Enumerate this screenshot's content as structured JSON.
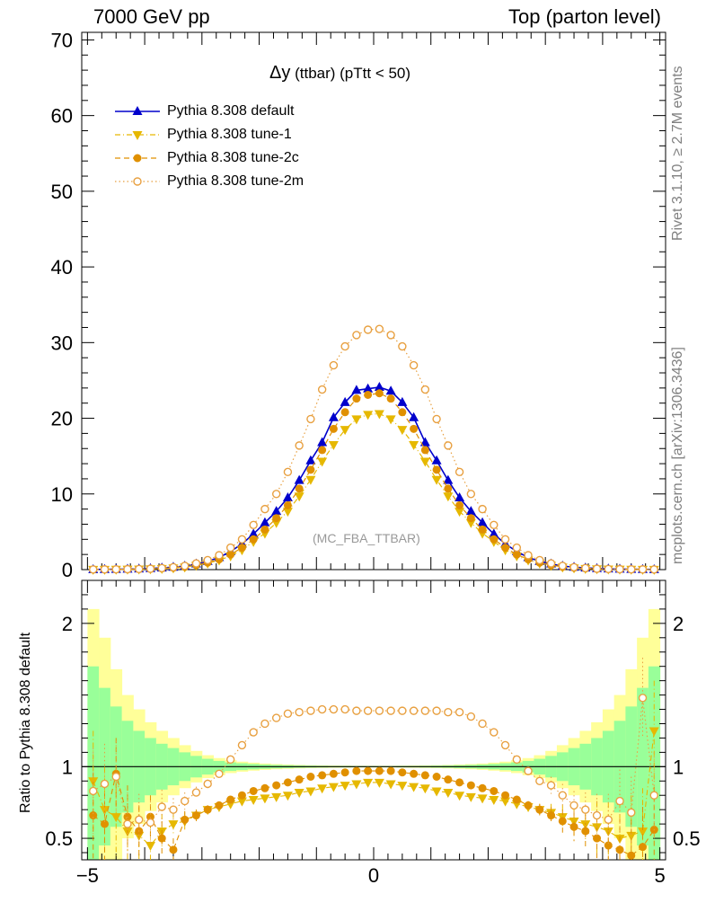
{
  "header": {
    "left": "7000 GeV pp",
    "right": "Top (parton level)"
  },
  "side_labels": {
    "rivet": "Rivet 3.1.10, ≥ 2.7M events",
    "mcplots": "mcplots.cern.ch [arXiv:1306.3436]"
  },
  "plot_title": {
    "main": "Δy",
    "detail": " (ttbar) (pTtt < 50)"
  },
  "analysis_tag": "(MC_FBA_TTBAR)",
  "ratio_ylabel": "Ratio to Pythia 8.308 default",
  "colors": {
    "default": "#0000cc",
    "tune1": "#e6b800",
    "tune2c": "#e09000",
    "tune2m": "#e8a040",
    "band_outer": "#ffff99",
    "band_inner": "#99ff99"
  },
  "chart_data": [
    {
      "type": "line",
      "xlim": [
        -5.1,
        5.1
      ],
      "ylim": [
        0,
        71
      ],
      "yticks": [
        0,
        10,
        20,
        30,
        40,
        50,
        60,
        70
      ],
      "xticks": [
        -5,
        0,
        5
      ],
      "x": [
        -4.9,
        -4.7,
        -4.5,
        -4.3,
        -4.1,
        -3.9,
        -3.7,
        -3.5,
        -3.3,
        -3.1,
        -2.9,
        -2.7,
        -2.5,
        -2.3,
        -2.1,
        -1.9,
        -1.7,
        -1.5,
        -1.3,
        -1.1,
        -0.9,
        -0.7,
        -0.5,
        -0.3,
        -0.1,
        0.1,
        0.3,
        0.5,
        0.7,
        0.9,
        1.1,
        1.3,
        1.5,
        1.7,
        1.9,
        2.1,
        2.3,
        2.5,
        2.7,
        2.9,
        3.1,
        3.3,
        3.5,
        3.7,
        3.9,
        4.1,
        4.3,
        4.5,
        4.7,
        4.9
      ],
      "series": [
        {
          "name": "Pythia 8.308 default",
          "marker": "triangle-up",
          "style": "solid",
          "values": [
            0.02,
            0.03,
            0.05,
            0.07,
            0.1,
            0.15,
            0.22,
            0.32,
            0.48,
            0.75,
            1.1,
            1.6,
            2.4,
            3.4,
            4.7,
            6.2,
            7.7,
            9.5,
            11.8,
            14.4,
            16.8,
            20.1,
            22.1,
            23.7,
            23.9,
            24.1,
            23.6,
            22.1,
            20.1,
            16.8,
            14.4,
            11.8,
            9.5,
            7.7,
            6.2,
            4.7,
            3.4,
            2.4,
            1.6,
            1.1,
            0.75,
            0.48,
            0.32,
            0.22,
            0.15,
            0.1,
            0.07,
            0.05,
            0.03,
            0.02
          ]
        },
        {
          "name": "Pythia 8.308 tune-1",
          "marker": "triangle-down",
          "style": "dashdot",
          "values": [
            0.01,
            0.02,
            0.03,
            0.04,
            0.06,
            0.09,
            0.14,
            0.21,
            0.32,
            0.55,
            0.85,
            1.25,
            1.8,
            2.6,
            3.7,
            4.8,
            6.2,
            7.7,
            9.7,
            11.9,
            14.3,
            16.5,
            18.5,
            19.9,
            20.5,
            20.6,
            19.9,
            18.5,
            16.5,
            14.3,
            11.9,
            9.7,
            7.7,
            6.2,
            4.8,
            3.7,
            2.6,
            1.8,
            1.25,
            0.85,
            0.55,
            0.32,
            0.21,
            0.14,
            0.09,
            0.06,
            0.04,
            0.03,
            0.02,
            0.01
          ]
        },
        {
          "name": "Pythia 8.308 tune-2c",
          "marker": "circle",
          "style": "dashed",
          "values": [
            0.01,
            0.02,
            0.03,
            0.05,
            0.07,
            0.1,
            0.16,
            0.24,
            0.36,
            0.6,
            0.92,
            1.35,
            2.0,
            2.9,
            4.0,
            5.3,
            6.8,
            8.5,
            10.7,
            13.2,
            15.8,
            18.6,
            20.8,
            22.6,
            23.1,
            23.3,
            22.6,
            20.8,
            18.6,
            15.8,
            13.2,
            10.7,
            8.5,
            6.8,
            5.3,
            4.0,
            2.9,
            2.0,
            1.35,
            0.92,
            0.6,
            0.36,
            0.24,
            0.16,
            0.1,
            0.07,
            0.05,
            0.03,
            0.02,
            0.01
          ]
        },
        {
          "name": "Pythia 8.308 tune-2m",
          "marker": "open-circle",
          "style": "dotted",
          "values": [
            0.02,
            0.03,
            0.04,
            0.06,
            0.08,
            0.12,
            0.2,
            0.32,
            0.5,
            0.82,
            1.25,
            1.9,
            2.9,
            4.0,
            5.9,
            8.0,
            10.0,
            12.9,
            16.4,
            19.9,
            23.8,
            27.0,
            29.5,
            31.0,
            31.7,
            31.8,
            31.0,
            29.5,
            27.0,
            23.8,
            19.9,
            16.4,
            12.9,
            10.0,
            8.0,
            5.9,
            4.0,
            2.9,
            1.9,
            1.25,
            0.82,
            0.5,
            0.32,
            0.2,
            0.12,
            0.08,
            0.06,
            0.04,
            0.03,
            0.02
          ]
        }
      ]
    },
    {
      "type": "line",
      "title": "ratio",
      "ylim": [
        0.35,
        2.3
      ],
      "yticks": [
        0.5,
        1,
        2
      ],
      "xticks": [
        -5,
        0,
        5
      ],
      "band_x_edges": [
        -5.0,
        -4.8,
        -4.6,
        -4.4,
        -4.2,
        -4.0,
        -3.8,
        -3.6,
        -3.4,
        -3.2,
        -3.0,
        -2.8,
        -2.6,
        -2.4,
        -2.2,
        -2.0,
        -1.8,
        -1.6,
        -1.4,
        -1.2,
        -1.0,
        -0.8,
        -0.6,
        -0.4,
        -0.2,
        0.0,
        0.2,
        0.4,
        0.6,
        0.8,
        1.0,
        1.2,
        1.4,
        1.6,
        1.8,
        2.0,
        2.2,
        2.4,
        2.6,
        2.8,
        3.0,
        3.2,
        3.4,
        3.6,
        3.8,
        4.0,
        4.2,
        4.4,
        4.6,
        4.8,
        5.0
      ],
      "band_outer_halfwidth": [
        1.1,
        0.9,
        0.68,
        0.5,
        0.4,
        0.31,
        0.25,
        0.2,
        0.15,
        0.11,
        0.08,
        0.06,
        0.045,
        0.035,
        0.028,
        0.022,
        0.018,
        0.015,
        0.012,
        0.01,
        0.009,
        0.008,
        0.007,
        0.006,
        0.006,
        0.006,
        0.006,
        0.007,
        0.008,
        0.009,
        0.01,
        0.012,
        0.015,
        0.018,
        0.022,
        0.028,
        0.035,
        0.045,
        0.06,
        0.08,
        0.11,
        0.15,
        0.2,
        0.25,
        0.31,
        0.4,
        0.5,
        0.68,
        0.9,
        1.1
      ],
      "band_inner_halfwidth": [
        0.7,
        0.55,
        0.42,
        0.32,
        0.25,
        0.2,
        0.16,
        0.13,
        0.1,
        0.075,
        0.055,
        0.04,
        0.03,
        0.024,
        0.019,
        0.015,
        0.012,
        0.01,
        0.008,
        0.007,
        0.006,
        0.005,
        0.005,
        0.004,
        0.004,
        0.004,
        0.004,
        0.005,
        0.005,
        0.006,
        0.007,
        0.008,
        0.01,
        0.012,
        0.015,
        0.019,
        0.024,
        0.03,
        0.04,
        0.055,
        0.075,
        0.1,
        0.13,
        0.16,
        0.2,
        0.25,
        0.32,
        0.42,
        0.55,
        0.7
      ],
      "series": [
        {
          "name": "Pythia 8.308 tune-1",
          "values": [
            0.9,
            0.7,
            0.65,
            0.55,
            0.52,
            0.45,
            0.55,
            0.6,
            0.62,
            0.66,
            0.7,
            0.72,
            0.74,
            0.76,
            0.77,
            0.78,
            0.79,
            0.8,
            0.82,
            0.83,
            0.85,
            0.86,
            0.87,
            0.88,
            0.89,
            0.89,
            0.88,
            0.87,
            0.86,
            0.85,
            0.83,
            0.82,
            0.8,
            0.79,
            0.78,
            0.77,
            0.76,
            0.74,
            0.72,
            0.7,
            0.68,
            0.65,
            0.62,
            0.6,
            0.58,
            0.55,
            0.5,
            0.52,
            0.55,
            1.25
          ],
          "errors": [
            0.35,
            0.3,
            0.28,
            0.25,
            0.2,
            0.18,
            0.12,
            0.08,
            0.06,
            0.04,
            0.03,
            0.02,
            0.015,
            0.01,
            0.01,
            0.01,
            0.01,
            0.01,
            0.01,
            0.01,
            0.01,
            0.01,
            0.01,
            0.01,
            0.01,
            0.01,
            0.01,
            0.01,
            0.01,
            0.01,
            0.01,
            0.01,
            0.01,
            0.01,
            0.01,
            0.01,
            0.015,
            0.02,
            0.03,
            0.04,
            0.06,
            0.08,
            0.1,
            0.12,
            0.18,
            0.2,
            0.25,
            0.28,
            0.3,
            0.35
          ]
        },
        {
          "name": "Pythia 8.308 tune-2c",
          "values": [
            0.66,
            0.6,
            0.95,
            0.65,
            0.55,
            0.65,
            0.5,
            0.42,
            0.63,
            0.66,
            0.7,
            0.73,
            0.77,
            0.8,
            0.83,
            0.85,
            0.87,
            0.89,
            0.91,
            0.93,
            0.94,
            0.95,
            0.96,
            0.97,
            0.97,
            0.97,
            0.97,
            0.96,
            0.95,
            0.94,
            0.93,
            0.91,
            0.89,
            0.87,
            0.85,
            0.83,
            0.8,
            0.77,
            0.73,
            0.7,
            0.66,
            0.62,
            0.58,
            0.55,
            0.5,
            0.45,
            0.42,
            0.38,
            0.44,
            0.56
          ],
          "errors": [
            0.3,
            0.28,
            0.25,
            0.22,
            0.18,
            0.15,
            0.12,
            0.08,
            0.06,
            0.04,
            0.03,
            0.02,
            0.015,
            0.01,
            0.01,
            0.01,
            0.01,
            0.01,
            0.01,
            0.01,
            0.01,
            0.01,
            0.01,
            0.01,
            0.01,
            0.01,
            0.01,
            0.01,
            0.01,
            0.01,
            0.01,
            0.01,
            0.01,
            0.01,
            0.01,
            0.01,
            0.015,
            0.02,
            0.03,
            0.04,
            0.06,
            0.08,
            0.1,
            0.12,
            0.15,
            0.18,
            0.22,
            0.25,
            0.28,
            0.3
          ]
        },
        {
          "name": "Pythia 8.308 tune-2m",
          "values": [
            0.83,
            0.88,
            0.93,
            0.6,
            0.63,
            0.61,
            0.72,
            0.7,
            0.76,
            0.82,
            0.88,
            0.95,
            1.05,
            1.15,
            1.24,
            1.3,
            1.34,
            1.37,
            1.38,
            1.39,
            1.4,
            1.4,
            1.4,
            1.39,
            1.39,
            1.39,
            1.39,
            1.39,
            1.39,
            1.39,
            1.39,
            1.38,
            1.38,
            1.35,
            1.3,
            1.24,
            1.15,
            1.05,
            0.97,
            0.9,
            0.87,
            0.8,
            0.73,
            0.7,
            0.66,
            0.63,
            0.76,
            0.68,
            1.48,
            0.8
          ],
          "errors": [
            0.3,
            0.28,
            0.25,
            0.22,
            0.18,
            0.15,
            0.12,
            0.08,
            0.06,
            0.04,
            0.03,
            0.02,
            0.015,
            0.01,
            0.01,
            0.01,
            0.01,
            0.01,
            0.01,
            0.01,
            0.01,
            0.01,
            0.01,
            0.01,
            0.01,
            0.01,
            0.01,
            0.01,
            0.01,
            0.01,
            0.01,
            0.01,
            0.01,
            0.01,
            0.01,
            0.01,
            0.015,
            0.02,
            0.03,
            0.04,
            0.06,
            0.08,
            0.1,
            0.12,
            0.15,
            0.18,
            0.22,
            0.25,
            0.28,
            0.3
          ]
        }
      ]
    }
  ]
}
